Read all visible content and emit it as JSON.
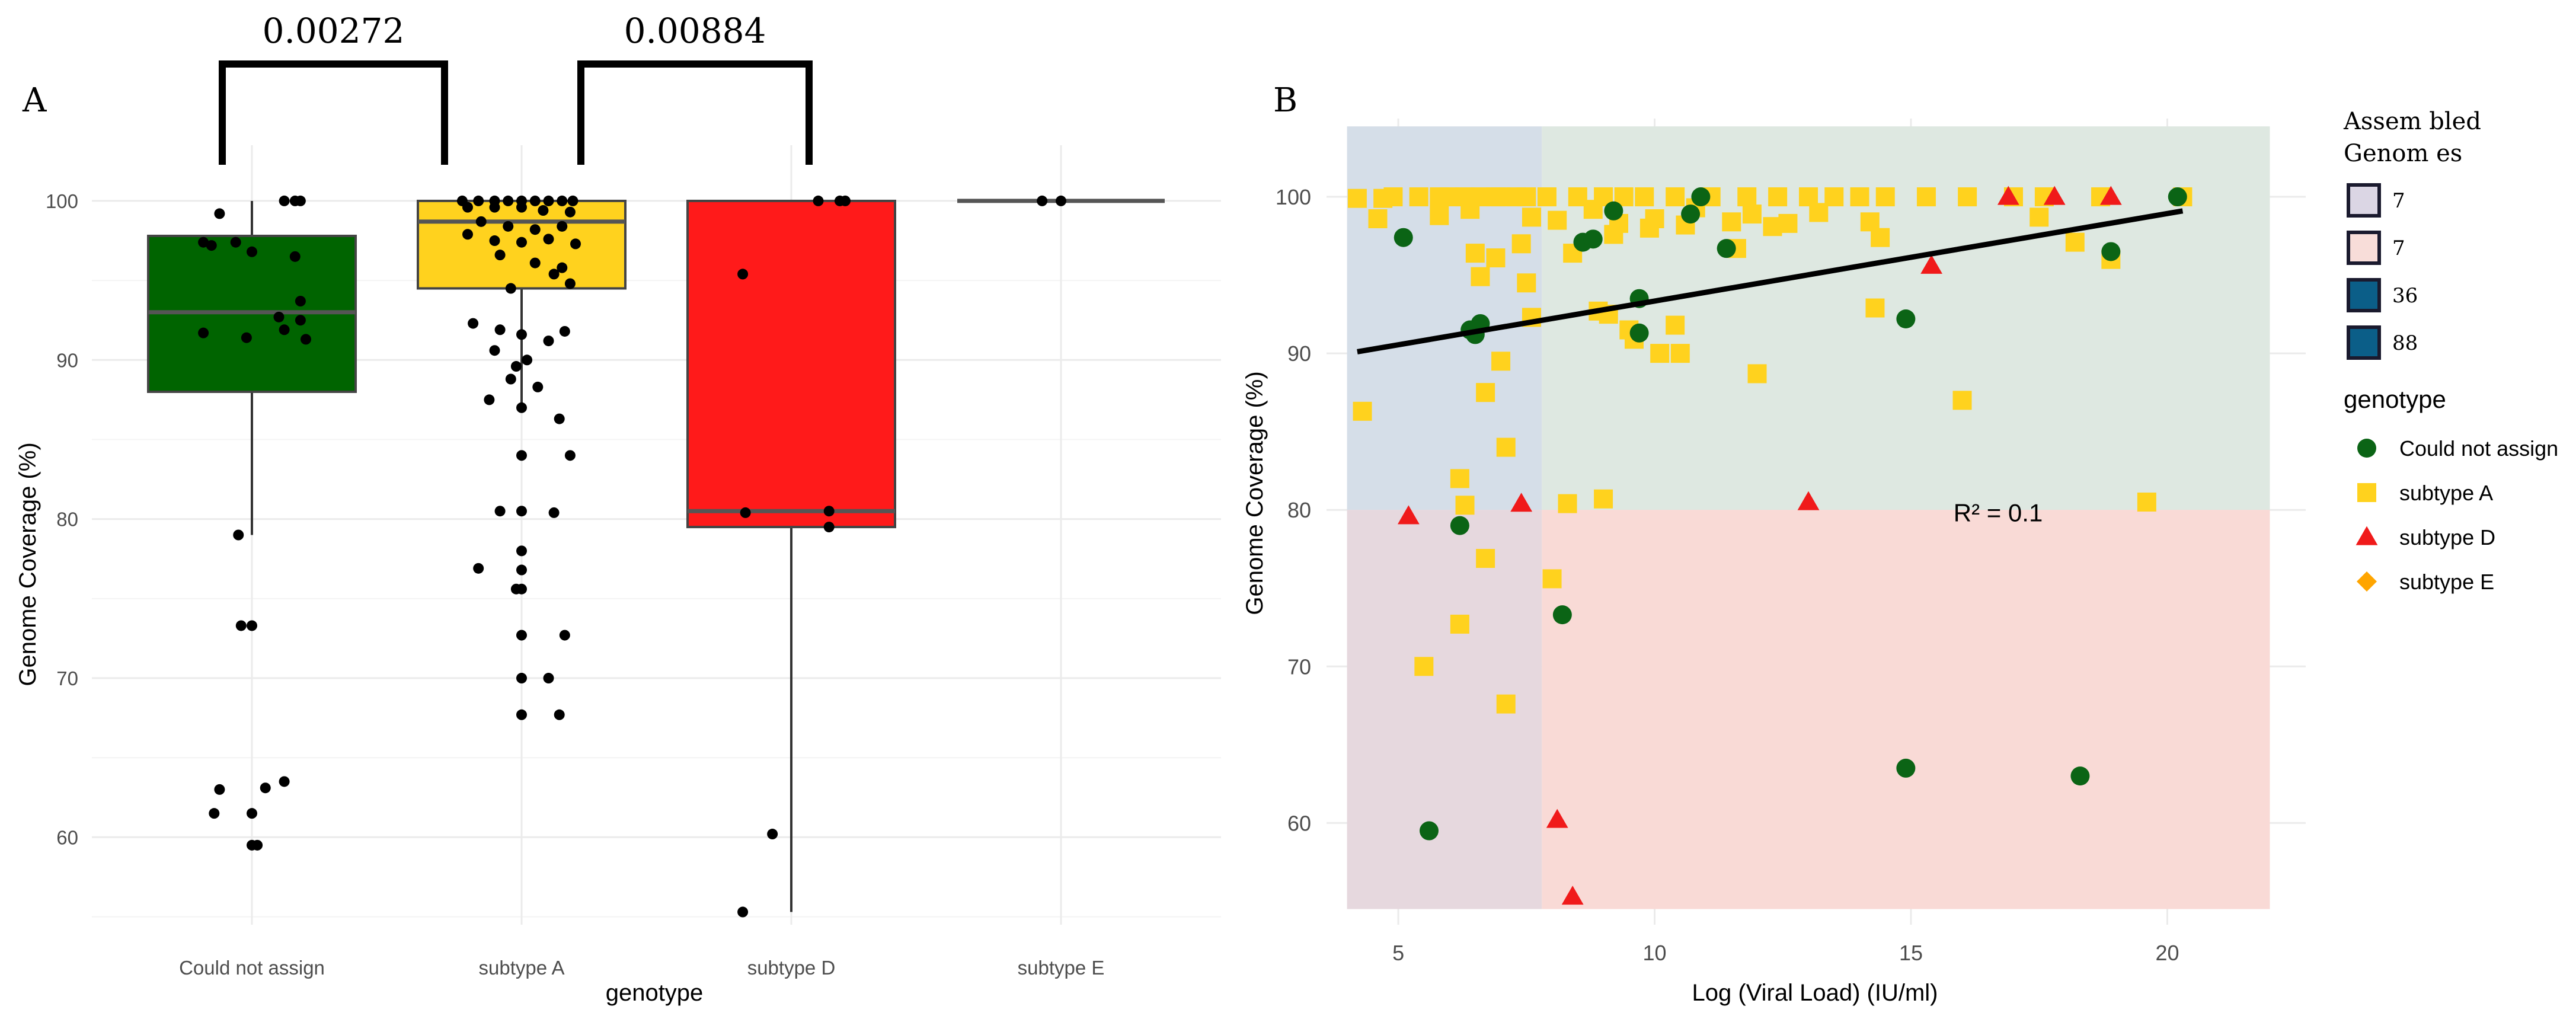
{
  "chart_data": [
    {
      "panel": "A",
      "type": "box",
      "xlabel": "genotype",
      "ylabel": "Genome Coverage (%)",
      "yticks": [
        60,
        70,
        80,
        90,
        100
      ],
      "ylim": [
        54.5,
        103.5
      ],
      "categories": [
        "Could not assign",
        "subtype A",
        "subtype D",
        "subtype E"
      ],
      "colors": [
        "#006400",
        "#FFD21E",
        "#FF1A1A",
        "#FFFFFF"
      ],
      "boxes": [
        {
          "q1": 88,
          "median": 93,
          "q3": 97.8,
          "lower": 79,
          "upper": 100
        },
        {
          "q1": 94.5,
          "median": 98.7,
          "q3": 100,
          "lower": 87,
          "upper": 100
        },
        {
          "q1": 79.5,
          "median": 80.5,
          "q3": 100,
          "lower": 55.3,
          "upper": 100
        },
        {
          "q1": 100,
          "median": 100,
          "q3": 100,
          "lower": 100,
          "upper": 100
        }
      ],
      "points": [
        [
          [
            -0.12,
            99.2
          ],
          [
            0.12,
            100
          ],
          [
            0.16,
            100
          ],
          [
            0.18,
            100
          ],
          [
            -0.18,
            97.4
          ],
          [
            -0.15,
            97.2
          ],
          [
            -0.06,
            97.4
          ],
          [
            0.0,
            96.8
          ],
          [
            0.16,
            96.5
          ],
          [
            0.18,
            93.7
          ],
          [
            0.1,
            92.7
          ],
          [
            0.18,
            92.5
          ],
          [
            0.12,
            91.9
          ],
          [
            0.2,
            91.3
          ],
          [
            -0.18,
            91.7
          ],
          [
            -0.02,
            91.4
          ],
          [
            -0.05,
            79
          ],
          [
            -0.04,
            73.3
          ],
          [
            0.0,
            73.3
          ],
          [
            0.12,
            63.5
          ],
          [
            0.05,
            63.1
          ],
          [
            -0.12,
            63
          ],
          [
            0.0,
            61.5
          ],
          [
            -0.14,
            61.5
          ],
          [
            0.0,
            59.5
          ],
          [
            0.02,
            59.5
          ]
        ],
        [
          [
            -0.22,
            100
          ],
          [
            -0.16,
            100
          ],
          [
            -0.1,
            100
          ],
          [
            -0.05,
            100
          ],
          [
            0.0,
            100
          ],
          [
            0.05,
            100
          ],
          [
            0.1,
            100
          ],
          [
            0.15,
            100
          ],
          [
            0.19,
            100
          ],
          [
            -0.2,
            99.6
          ],
          [
            -0.1,
            99.6
          ],
          [
            0.0,
            99.6
          ],
          [
            0.08,
            99.4
          ],
          [
            0.18,
            99.3
          ],
          [
            -0.15,
            98.7
          ],
          [
            -0.05,
            98.4
          ],
          [
            0.05,
            98.2
          ],
          [
            0.15,
            98.4
          ],
          [
            -0.2,
            97.9
          ],
          [
            -0.1,
            97.5
          ],
          [
            0.0,
            97.4
          ],
          [
            0.1,
            97.6
          ],
          [
            0.2,
            97.3
          ],
          [
            -0.08,
            96.6
          ],
          [
            0.05,
            96.1
          ],
          [
            0.15,
            95.8
          ],
          [
            0.18,
            94.8
          ],
          [
            0.12,
            95.4
          ],
          [
            -0.04,
            94.5
          ],
          [
            -0.18,
            92.3
          ],
          [
            -0.08,
            91.9
          ],
          [
            0.0,
            91.6
          ],
          [
            0.1,
            91.2
          ],
          [
            0.16,
            91.8
          ],
          [
            -0.1,
            90.6
          ],
          [
            0.02,
            90.0
          ],
          [
            -0.02,
            89.6
          ],
          [
            -0.04,
            88.8
          ],
          [
            0.06,
            88.3
          ],
          [
            -0.12,
            87.5
          ],
          [
            0.0,
            87
          ],
          [
            0.14,
            86.3
          ],
          [
            0.18,
            84
          ],
          [
            0.0,
            84
          ],
          [
            -0.08,
            80.5
          ],
          [
            0.0,
            80.5
          ],
          [
            0.12,
            80.4
          ],
          [
            0.0,
            78
          ],
          [
            -0.16,
            76.9
          ],
          [
            0.0,
            76.8
          ],
          [
            -0.02,
            75.6
          ],
          [
            0.0,
            75.6
          ],
          [
            0.16,
            72.7
          ],
          [
            0.0,
            72.7
          ],
          [
            0.0,
            70
          ],
          [
            0.1,
            70
          ],
          [
            0.14,
            67.7
          ],
          [
            0.0,
            67.7
          ]
        ],
        [
          [
            0.1,
            100
          ],
          [
            0.18,
            100
          ],
          [
            0.2,
            100
          ],
          [
            -0.18,
            95.4
          ],
          [
            -0.17,
            80.4
          ],
          [
            0.14,
            80.5
          ],
          [
            0.14,
            79.5
          ],
          [
            -0.07,
            60.2
          ],
          [
            -0.18,
            55.3
          ]
        ],
        [
          [
            -0.07,
            100
          ],
          [
            0.0,
            100
          ]
        ]
      ],
      "brackets": [
        {
          "from": 0,
          "to": 1,
          "label": "0.00272"
        },
        {
          "from": 1,
          "to": 2,
          "label": "0.00884"
        }
      ]
    },
    {
      "panel": "B",
      "type": "scatter",
      "xlabel": "Log (Viral Load) (IU/ml)",
      "ylabel": "Genome Coverage (%)",
      "xticks": [
        5,
        10,
        15,
        20
      ],
      "yticks": [
        60,
        70,
        80,
        90,
        100
      ],
      "xlim": [
        3.6,
        22.7
      ],
      "ylim": [
        53.5,
        105
      ],
      "regions": [
        {
          "x0": 4,
          "x1": 7.8,
          "y0": 80,
          "y1": 104.5,
          "color": "#D5DEE8"
        },
        {
          "x0": 7.8,
          "x1": 22,
          "y0": 80,
          "y1": 104.5,
          "color": "#DEE8E1"
        },
        {
          "x0": 4,
          "x1": 7.8,
          "y0": 54.5,
          "y1": 80,
          "color": "#E6D8DE"
        },
        {
          "x0": 7.8,
          "x1": 22,
          "y0": 54.5,
          "y1": 80,
          "color": "#F9DAD6"
        }
      ],
      "regression": {
        "x": [
          4.2,
          20.3
        ],
        "y": [
          90.1,
          99.1
        ]
      },
      "annotation": "R² = 0.1",
      "annotation_pos": [
        16.7,
        79.8
      ],
      "legend_title": "genotype",
      "series": [
        {
          "name": "Could not assign",
          "marker": "circle",
          "color": "#0B6415",
          "x": [
            5.1,
            6.4,
            6.6,
            6.5,
            8.6,
            8.8,
            9.2,
            9.7,
            9.7,
            10.7,
            10.9,
            11.4,
            14.9,
            14.9,
            18.3,
            18.9,
            20.2,
            5.6,
            6.2,
            8.2
          ],
          "y": [
            97.4,
            91.5,
            91.9,
            91.2,
            97.1,
            97.3,
            99.1,
            93.5,
            91.3,
            98.9,
            100,
            96.7,
            92.2,
            63.5,
            63.0,
            96.5,
            100,
            59.5,
            79.0,
            73.3
          ]
        },
        {
          "name": "subtype A",
          "marker": "square",
          "color": "#FFD21E",
          "x": [
            4.2,
            4.7,
            4.9,
            5.4,
            5.8,
            6.0,
            6.3,
            6.6,
            6.9,
            7.3,
            7.5,
            7.0,
            7.9,
            8.5,
            9.0,
            9.4,
            9.8,
            10.4,
            11.1,
            11.8,
            12.4,
            13.0,
            13.5,
            14.0,
            14.5,
            15.3,
            16.1,
            17.0,
            17.6,
            18.7,
            20.3,
            4.6,
            5.8,
            6.4,
            7.6,
            8.1,
            8.8,
            9.3,
            10.0,
            10.6,
            11.5,
            11.9,
            12.6,
            13.2,
            14.2,
            14.4,
            6.5,
            6.9,
            7.4,
            8.4,
            9.2,
            9.9,
            10.8,
            11.6,
            12.3,
            17.5,
            18.2,
            18.9,
            6.6,
            7.5,
            7.6,
            8.9,
            9.1,
            9.5,
            10.1,
            10.4,
            14.3,
            12.0,
            16.0,
            7.0,
            6.7,
            7.1,
            4.3,
            6.2,
            6.3,
            8.3,
            9.0,
            9.6,
            10.5,
            19.6,
            8.0,
            6.7,
            6.2,
            5.5,
            7.1
          ],
          "y": [
            99.9,
            99.9,
            100,
            100,
            100,
            100,
            100,
            100,
            100,
            100,
            100,
            100,
            100,
            100,
            100,
            100,
            100,
            100,
            100,
            100,
            100,
            100,
            100,
            100,
            100,
            100,
            100,
            100,
            100,
            100,
            100,
            98.6,
            98.8,
            99.2,
            98.7,
            98.5,
            99.2,
            98.3,
            98.6,
            98.2,
            98.4,
            98.9,
            98.3,
            99.0,
            98.4,
            97.4,
            96.4,
            96.1,
            97.0,
            96.4,
            97.6,
            98.0,
            99.3,
            96.7,
            98.1,
            98.7,
            97.1,
            96.0,
            94.9,
            94.5,
            92.3,
            92.7,
            92.5,
            91.5,
            90.0,
            91.8,
            92.9,
            88.7,
            87.0,
            89.5,
            87.5,
            84.0,
            86.3,
            82.0,
            80.3,
            80.4,
            80.7,
            90.9,
            90.0,
            80.5,
            75.6,
            76.9,
            72.7,
            70.0,
            67.6
          ]
        },
        {
          "name": "subtype D",
          "marker": "triangle",
          "color": "#F01A1A",
          "x": [
            16.9,
            17.8,
            18.9,
            15.4,
            13.0,
            7.4,
            5.2,
            8.1,
            8.4
          ],
          "y": [
            100,
            100,
            100,
            95.6,
            80.5,
            80.4,
            79.6,
            60.2,
            55.3
          ]
        },
        {
          "name": "subtype E",
          "marker": "diamond",
          "color": "#FFA500",
          "x": [],
          "y": []
        }
      ]
    }
  ],
  "labels": {
    "panel_a": "A",
    "panel_b": "B",
    "genomes_title_line1": "Assem bled",
    "genomes_title_line2": "Genom es"
  },
  "genome_legend": [
    {
      "label": "7",
      "color": "#DBD6E4"
    },
    {
      "label": "7",
      "color": "#F8DDD9"
    },
    {
      "label": "36",
      "color": "#0B5E88"
    },
    {
      "label": "88",
      "color": "#0B5E88"
    }
  ]
}
